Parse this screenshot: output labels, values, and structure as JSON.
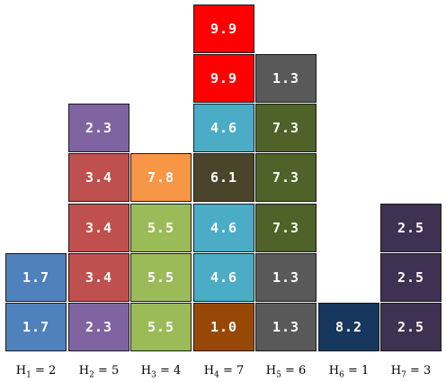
{
  "colors": {
    "blue": "#4f81bd",
    "purple": "#8064a2",
    "red": "#c0504d",
    "green": "#9bbb59",
    "orange": "#f79646",
    "cyan": "#4bacc6",
    "brown": "#974806",
    "dark-olive": "#4a452a",
    "bright-red": "#ff0000",
    "gray": "#595959",
    "olive": "#4f6228",
    "navy": "#17375e",
    "dark-purple": "#3f3151"
  },
  "columns": [
    {
      "label_var": "H",
      "label_sub": "1",
      "label_eq": " = 2",
      "cells": [
        {
          "value": "1.7",
          "color": "blue"
        },
        {
          "value": "1.7",
          "color": "blue"
        }
      ]
    },
    {
      "label_var": "H",
      "label_sub": "2",
      "label_eq": " = 5",
      "cells": [
        {
          "value": "2.3",
          "color": "purple"
        },
        {
          "value": "3.4",
          "color": "red"
        },
        {
          "value": "3.4",
          "color": "red"
        },
        {
          "value": "3.4",
          "color": "red"
        },
        {
          "value": "2.3",
          "color": "purple"
        }
      ]
    },
    {
      "label_var": "H",
      "label_sub": "3",
      "label_eq": " = 4",
      "cells": [
        {
          "value": "5.5",
          "color": "green"
        },
        {
          "value": "5.5",
          "color": "green"
        },
        {
          "value": "5.5",
          "color": "green"
        },
        {
          "value": "7.8",
          "color": "orange"
        }
      ]
    },
    {
      "label_var": "H",
      "label_sub": "4",
      "label_eq": " = 7",
      "cells": [
        {
          "value": "1.0",
          "color": "brown"
        },
        {
          "value": "4.6",
          "color": "cyan"
        },
        {
          "value": "4.6",
          "color": "cyan"
        },
        {
          "value": "6.1",
          "color": "dark-olive"
        },
        {
          "value": "4.6",
          "color": "cyan"
        },
        {
          "value": "9.9",
          "color": "bright-red"
        },
        {
          "value": "9.9",
          "color": "bright-red"
        }
      ]
    },
    {
      "label_var": "H",
      "label_sub": "5",
      "label_eq": " = 6",
      "cells": [
        {
          "value": "1.3",
          "color": "gray"
        },
        {
          "value": "1.3",
          "color": "gray"
        },
        {
          "value": "7.3",
          "color": "olive"
        },
        {
          "value": "7.3",
          "color": "olive"
        },
        {
          "value": "7.3",
          "color": "olive"
        },
        {
          "value": "1.3",
          "color": "gray"
        }
      ]
    },
    {
      "label_var": "H",
      "label_sub": "6",
      "label_eq": " = 1",
      "cells": [
        {
          "value": "8.2",
          "color": "navy"
        }
      ]
    },
    {
      "label_var": "H",
      "label_sub": "7",
      "label_eq": " = 3",
      "cells": [
        {
          "value": "2.5",
          "color": "dark-purple"
        },
        {
          "value": "2.5",
          "color": "dark-purple"
        },
        {
          "value": "2.5",
          "color": "dark-purple"
        }
      ]
    }
  ]
}
